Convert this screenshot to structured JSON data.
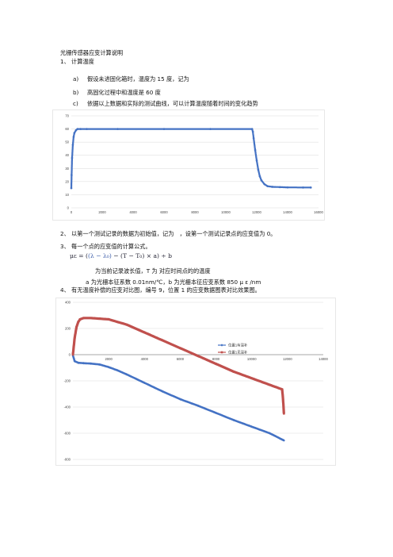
{
  "doc": {
    "title": "光栅传感器应变计算说明",
    "s1": "1、 计算温度",
    "s1a_mark": "a)",
    "s1a": "假设未进固化箱时，温度为 15 度，记为",
    "s1b_mark": "b)",
    "s1b": "高固化过程中和温度是 60 度",
    "s1c_mark": "c)",
    "s1c": "依据以上数据和实际的测试曲线，可以计算温度随着时间的变化趋势",
    "s2": "2、 以第一个测试记录的数据为初始值，记为　，设第一个测试记录点的应变值为 0。",
    "s3": "3、 每一个点的应变值的计算公式。",
    "formula": {
      "lhs": "με = (",
      "p1": "(λ − λ₀)",
      "mid": " − (T − T₀) × a) ÷ b"
    },
    "note1": "为当前记录波长值，T 为  对应时间点的的温度",
    "note2": "a  为光栅本征系数 0.01nm/℃，b 为光栅本征应变系数 850 μ ε /nm",
    "s4": "4、 有无温度补偿的应变对比图，编号 9，位置 1 的应变数据图表对比效果图。"
  },
  "chart_data": [
    {
      "type": "scatter",
      "title": "",
      "xlabel": "",
      "ylabel": "",
      "xlim": [
        0,
        16000
      ],
      "ylim": [
        0,
        70
      ],
      "x_ticks": [
        "0",
        "2000",
        "4000",
        "6000",
        "8000",
        "10000",
        "12000",
        "14000",
        "16000"
      ],
      "y_ticks": [
        "0",
        "10",
        "20",
        "30",
        "40",
        "50",
        "60",
        "70"
      ],
      "grid": true,
      "color": "#4472c4",
      "series": [
        {
          "x": [
            0,
            20,
            50,
            100,
            150,
            200,
            300,
            400,
            600,
            1000,
            3000,
            6000,
            9000,
            11700,
            11750,
            11800,
            11900,
            12000,
            12100,
            12200,
            12300,
            12500,
            12700,
            13000,
            13500,
            14000,
            15000,
            15500
          ],
          "values": [
            15,
            25,
            38,
            48,
            54,
            57,
            59,
            60,
            60,
            60,
            60,
            60,
            60,
            60,
            58,
            53,
            44,
            36,
            29,
            24,
            21,
            18,
            16.5,
            16,
            15.8,
            15.6,
            15.5,
            15.5
          ]
        }
      ]
    },
    {
      "type": "line",
      "title": "",
      "xlabel": "",
      "ylabel": "",
      "xlim": [
        0,
        14000
      ],
      "ylim": [
        -800,
        400
      ],
      "x_ticks": [
        "0",
        "2000",
        "4000",
        "6000",
        "8000",
        "10000",
        "12000",
        "14000"
      ],
      "y_ticks": [
        "400",
        "200",
        "0",
        "-200",
        "-400",
        "-600",
        "-800"
      ],
      "grid": true,
      "legend": "right",
      "series": [
        {
          "name": "位置1有温补",
          "color": "#4472c4",
          "x": [
            0,
            100,
            300,
            600,
            1000,
            1500,
            2000,
            2500,
            3000,
            4000,
            5000,
            6000,
            7000,
            8000,
            9000,
            10000,
            11000,
            11800
          ],
          "values": [
            -5,
            -50,
            -62,
            -65,
            -68,
            -75,
            -95,
            -120,
            -150,
            -215,
            -280,
            -340,
            -390,
            -445,
            -500,
            -550,
            -600,
            -655
          ]
        },
        {
          "name": "位置1无温补",
          "color": "#c0504d",
          "x": [
            0,
            100,
            200,
            300,
            400,
            600,
            1000,
            2000,
            3000,
            4000,
            5000,
            6000,
            7000,
            8000,
            9000,
            10000,
            11000,
            11700,
            11750,
            11800
          ],
          "values": [
            0,
            130,
            210,
            250,
            270,
            280,
            280,
            270,
            230,
            170,
            110,
            50,
            -10,
            -70,
            -130,
            -180,
            -230,
            -265,
            -340,
            -450
          ]
        }
      ]
    }
  ]
}
